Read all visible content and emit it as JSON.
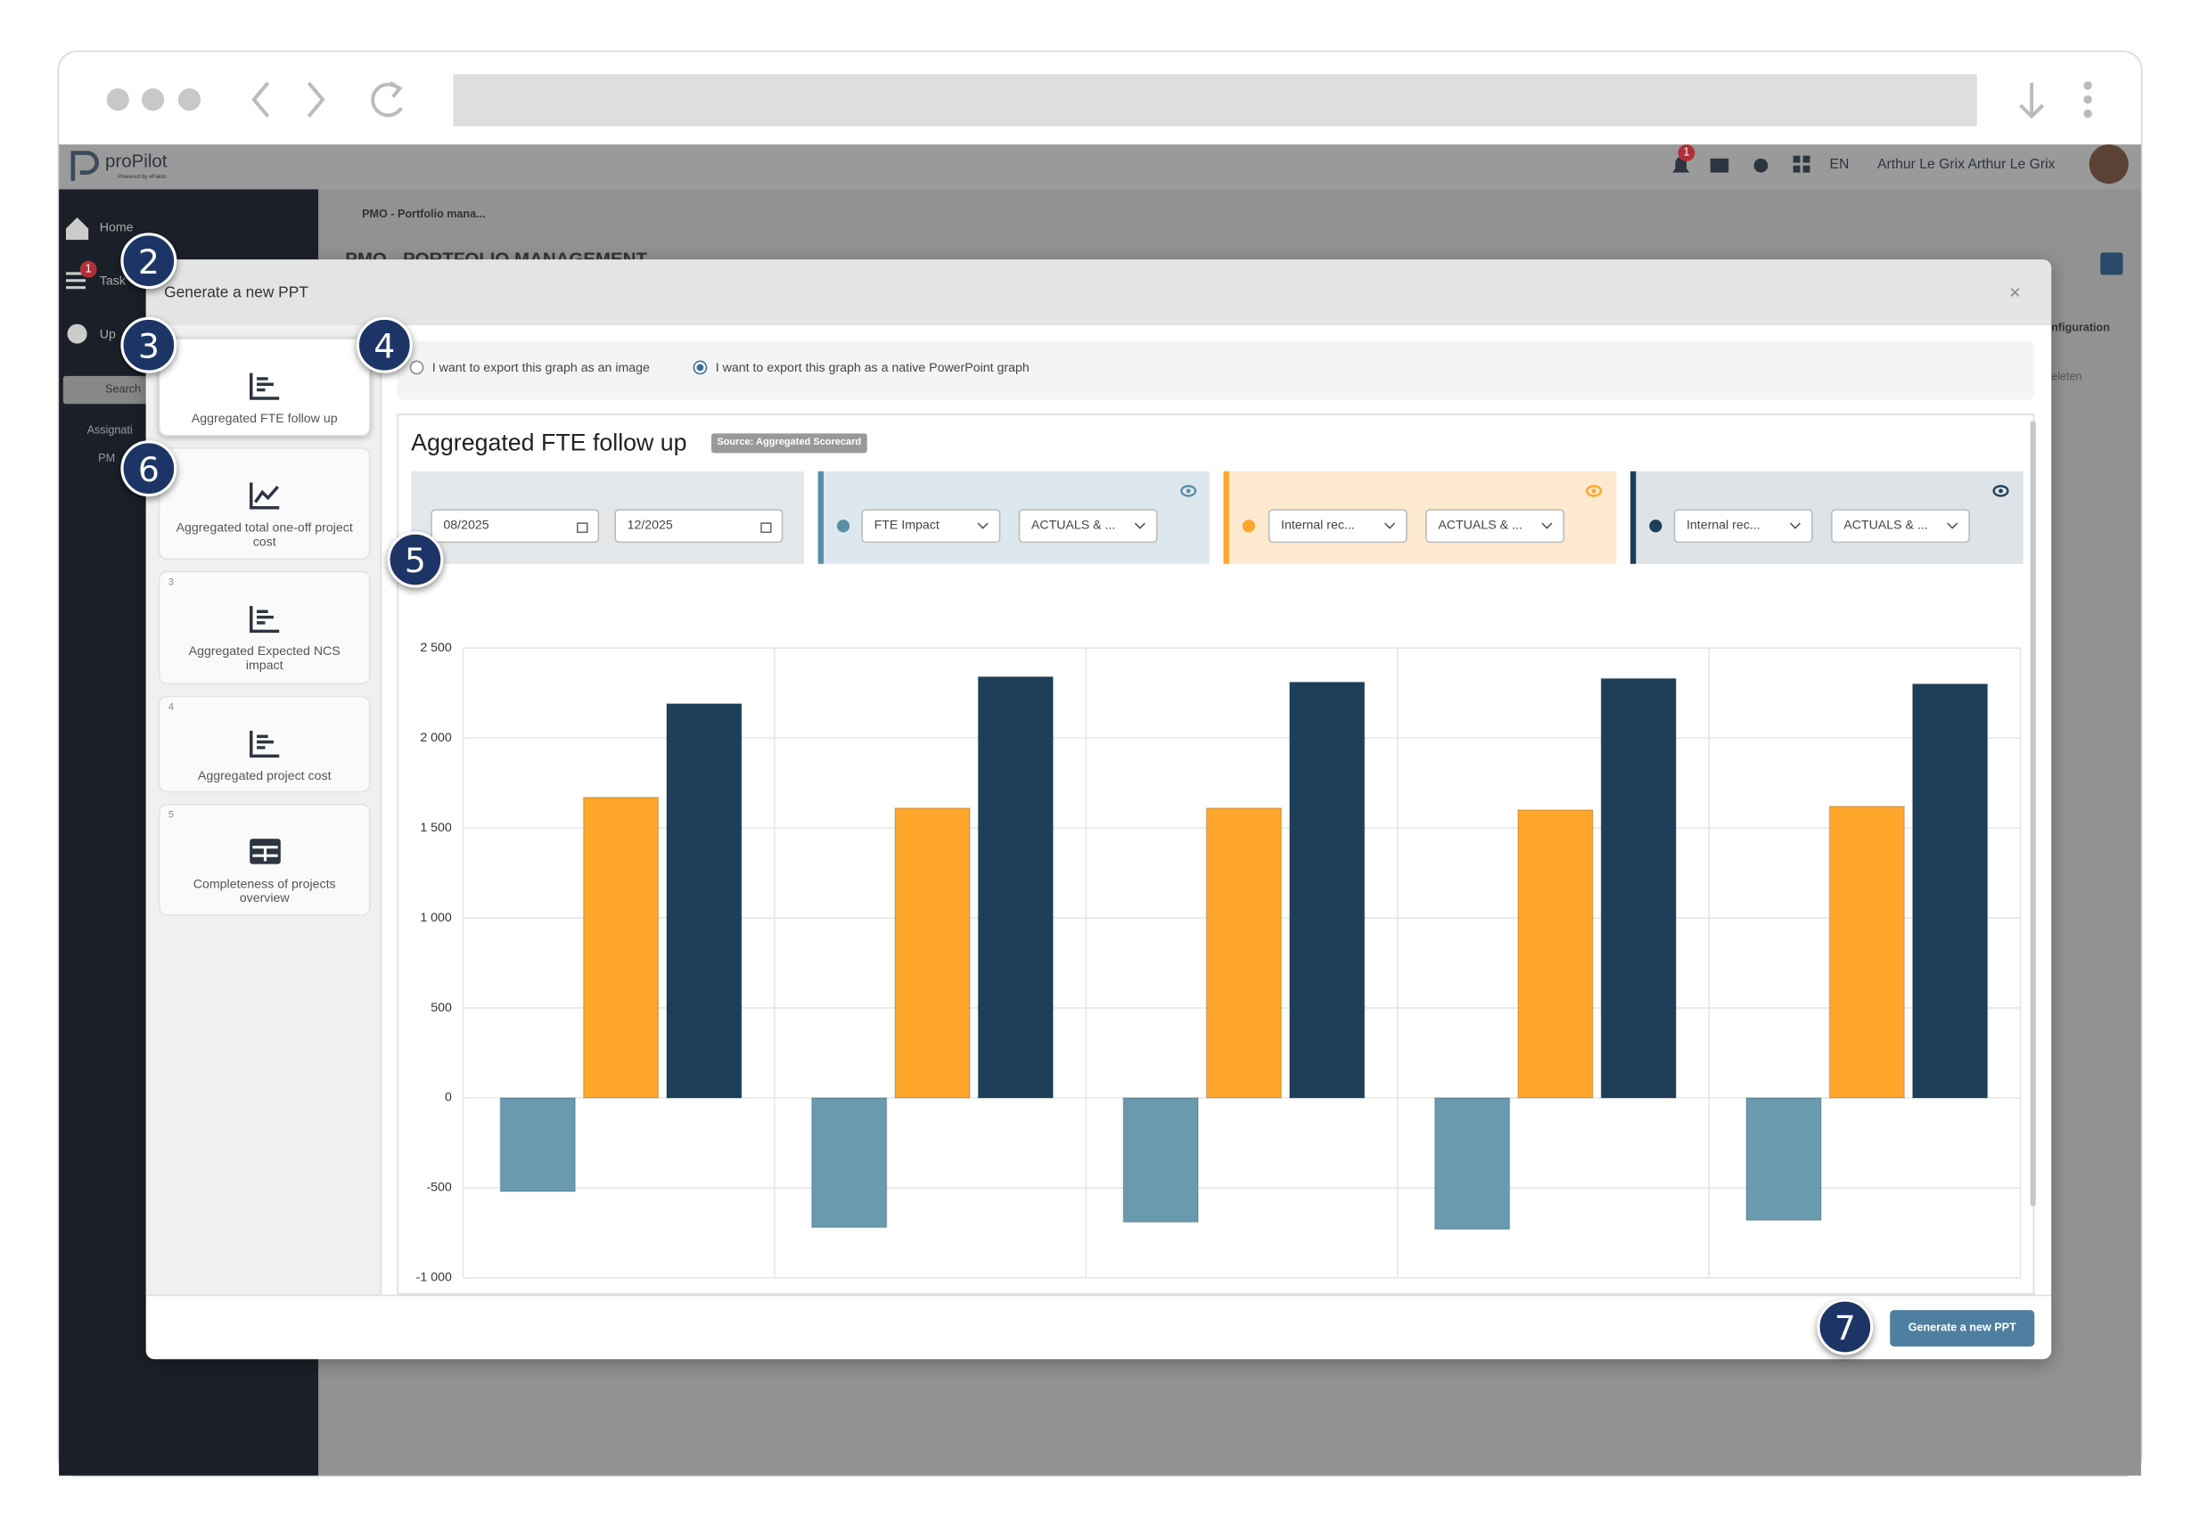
{
  "app": {
    "logo": "proPilot",
    "logo_sub": "Powered by eFakto",
    "notification_count": 1,
    "language": "EN",
    "user": "Arthur Le Grix Arthur Le Grix"
  },
  "sidebar": {
    "items": [
      "Home",
      "Task",
      "Up"
    ],
    "task_badge": 1,
    "search": "Search",
    "tree": [
      "Assignati",
      "PM"
    ]
  },
  "page": {
    "breadcrumb": "PMO - Portfolio mana...",
    "heading": "PMO - PORTFOLIO MANAGEMENT",
    "right_tab": "nfiguration",
    "right_link": "eleten"
  },
  "modal": {
    "title": "Generate a new PPT",
    "close": "×",
    "tiles": [
      {
        "label": "Aggregated FTE follow up"
      },
      {
        "label": "Aggregated total one-off project cost"
      },
      {
        "number": 3,
        "label": "Aggregated Expected NCS impact"
      },
      {
        "number": 4,
        "label": "Aggregated project cost"
      },
      {
        "number": 5,
        "label": "Completeness of projects overview"
      }
    ],
    "export_options": [
      "I want to export this graph as an image",
      "I want to export this graph as a native PowerPoint graph"
    ],
    "graph_title": "Aggregated FTE follow up",
    "source": "Source: Aggregated Scorecard",
    "filters": {
      "start": "08/2025",
      "end": "12/2025",
      "selects": [
        "FTE Impact",
        "ACTUALS & ...",
        "Internal rec...",
        "ACTUALS & ...",
        "Internal rec...",
        "ACTUALS & ..."
      ]
    },
    "button": "Generate a new PPT"
  },
  "callouts": [
    2,
    3,
    4,
    5,
    6,
    7
  ],
  "chart_data": {
    "type": "bar",
    "categories": [
      null,
      null,
      null,
      null,
      null
    ],
    "series": [
      {
        "color": "#6a9aad",
        "values": [
          -520,
          -720,
          -690,
          -730,
          -680
        ]
      },
      {
        "color": "#ffa62b",
        "values": [
          1670,
          1610,
          1610,
          1600,
          1620
        ]
      },
      {
        "color": "#1e3f5a",
        "values": [
          2190,
          2340,
          2310,
          2330,
          2300
        ]
      }
    ],
    "ylim": [
      -1000,
      2500
    ],
    "yticks": [
      {
        "value": -1000,
        "label": "-1 000"
      },
      -500,
      0,
      500,
      {
        "value": 1000,
        "label": "1 000"
      },
      {
        "value": 1500,
        "label": "1 500"
      },
      {
        "value": 2000,
        "label": "2 000"
      },
      {
        "value": 2500,
        "label": "2 500"
      }
    ],
    "grid": true
  }
}
